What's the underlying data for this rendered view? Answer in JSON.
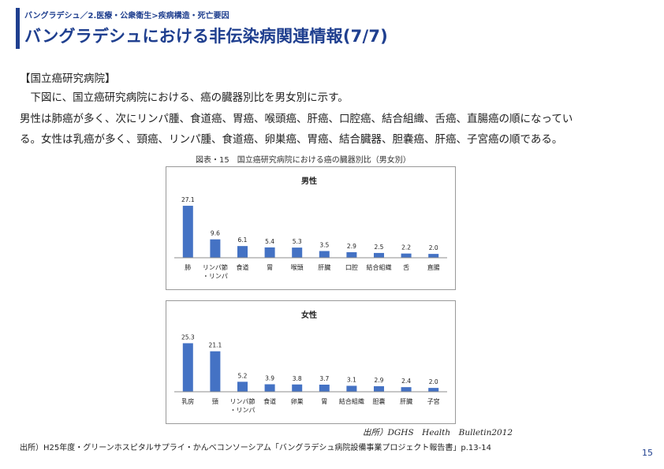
{
  "header": {
    "breadcrumb": "バングラデシュ／2.医療・公衆衛生>疾病構造・死亡要因",
    "title": "バングラデシュにおける非伝染病関連情報(7/7)"
  },
  "body": {
    "section_label": "【国立癌研究病院】",
    "line1": "　下図に、国立癌研究病院における、癌の臓器別比を男女別に示す。",
    "line2": "男性は肺癌が多く、次にリンパ腫、食道癌、胃癌、喉頭癌、肝癌、口腔癌、結合組織、舌癌、直腸癌の順になってい",
    "line3": "る。女性は乳癌が多く、頸癌、リンパ腫、食道癌、卵巣癌、胃癌、結合臓器、胆嚢癌、肝癌、子宮癌の順である。"
  },
  "figure": {
    "caption": "図表・15　国立癌研究病院における癌の臓器別比（男女別）",
    "source_italic": "出所）DGHS　Health　Bulletin2012"
  },
  "footer": {
    "note": "出所）H25年度・グリーンホスピタルサプライ・かんべコンソーシアム「バングラデシュ病院設備事業プロジェクト報告書」p.13-14",
    "page": "15"
  },
  "colors": {
    "bar": "#4472c4",
    "accent": "#1f3f8f"
  },
  "chart_data": [
    {
      "type": "bar",
      "title": "男性",
      "categories": [
        "肺",
        "リンパ節\n・リンパ",
        "食道",
        "胃",
        "喉頭",
        "肝臓",
        "口腔",
        "結合組織",
        "舌",
        "直腸"
      ],
      "values": [
        27.1,
        9.6,
        6.1,
        5.4,
        5.3,
        3.5,
        2.9,
        2.5,
        2.2,
        2.0
      ],
      "value_labels": [
        "27.1",
        "9.6",
        "6.1",
        "5.4",
        "5.3",
        "3.5",
        "2.9",
        "2.5",
        "2.2",
        "2.0"
      ],
      "ylim": [
        0,
        30
      ]
    },
    {
      "type": "bar",
      "title": "女性",
      "categories": [
        "乳房",
        "頸",
        "リンパ節\n・リンパ",
        "食道",
        "卵巣",
        "胃",
        "結合組織",
        "胆嚢",
        "肝臓",
        "子宮"
      ],
      "values": [
        25.3,
        21.1,
        5.2,
        3.9,
        3.8,
        3.7,
        3.1,
        2.9,
        2.4,
        2.0
      ],
      "value_labels": [
        "25.3",
        "21.1",
        "5.2",
        "3.9",
        "3.8",
        "3.7",
        "3.1",
        "2.9",
        "2.4",
        "2.0"
      ],
      "ylim": [
        0,
        30
      ]
    }
  ]
}
